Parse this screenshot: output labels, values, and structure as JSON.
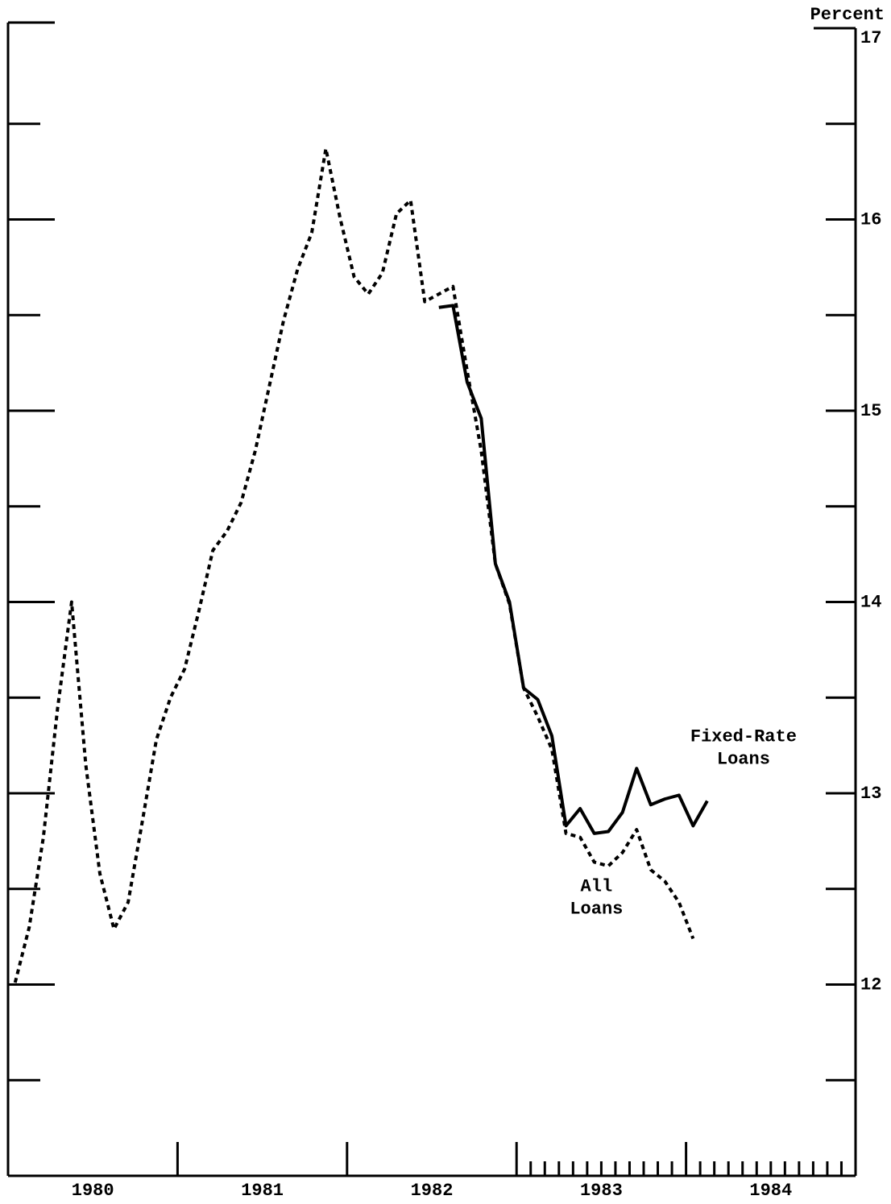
{
  "chart_data": {
    "type": "line",
    "y_axis_label": "Percent",
    "categories": [
      "1980",
      "1981",
      "1982",
      "1983",
      "1984"
    ],
    "x": [
      0.5,
      1.5,
      2.5,
      3.5,
      4.5,
      5.5,
      6.5,
      7.5,
      8.5,
      9.5,
      10.5,
      11.5,
      12.5,
      13.5,
      14.5,
      15.5,
      16.5,
      17.5,
      18.5,
      19.5,
      20.5,
      21.5,
      22.5,
      23.5,
      24.5,
      25.5,
      26.5,
      27.5,
      28.5,
      29.5,
      30.5,
      31.5,
      32.5,
      33.5,
      34.5,
      35.5,
      36.5,
      37.5,
      38.5,
      39.5,
      40.5,
      41.5,
      42.5,
      43.5,
      44.5,
      45.5,
      46.5,
      47.5,
      48.5,
      49.5
    ],
    "series": [
      {
        "name": "All Loans",
        "color": "#000000",
        "style": "dotted",
        "values": [
          12.01,
          12.3,
          12.77,
          13.44,
          14.0,
          13.15,
          12.58,
          12.29,
          12.43,
          12.85,
          13.28,
          13.5,
          13.65,
          13.95,
          14.27,
          14.37,
          14.52,
          14.79,
          15.13,
          15.47,
          15.74,
          15.93,
          16.37,
          16.01,
          15.7,
          15.61,
          15.72,
          16.03,
          16.1,
          15.57,
          15.61,
          15.65,
          15.21,
          14.79,
          14.2,
          13.99,
          13.55,
          13.4,
          13.23,
          12.79,
          12.77,
          12.64,
          12.62,
          12.69,
          12.81,
          12.6,
          12.54,
          12.43,
          12.24,
          null
        ]
      },
      {
        "name": "Fixed-Rate Loans",
        "color": "#000000",
        "style": "solid",
        "values": [
          null,
          null,
          null,
          null,
          null,
          null,
          null,
          null,
          null,
          null,
          null,
          null,
          null,
          null,
          null,
          null,
          null,
          null,
          null,
          null,
          null,
          null,
          null,
          null,
          null,
          null,
          null,
          null,
          null,
          null,
          15.54,
          15.55,
          15.15,
          14.96,
          14.2,
          14.0,
          13.55,
          13.49,
          13.3,
          12.83,
          12.92,
          12.79,
          12.8,
          12.9,
          13.13,
          12.94,
          12.97,
          12.99,
          12.83,
          12.96
        ]
      }
    ],
    "xlim": [
      0,
      60
    ],
    "xticks": [
      12,
      24,
      36,
      48
    ],
    "xminor_ticks": [
      37,
      38,
      39,
      40,
      41,
      42,
      43,
      44,
      45,
      46,
      47,
      49,
      50,
      51,
      52,
      53,
      54,
      55,
      56,
      57,
      58,
      59
    ],
    "ylim": [
      11,
      17
    ],
    "yticks": [
      12,
      13,
      14,
      15,
      16,
      17
    ],
    "yminor_ticks": [
      11.5,
      12.5,
      13.5,
      14.5,
      15.5,
      16.5
    ]
  }
}
